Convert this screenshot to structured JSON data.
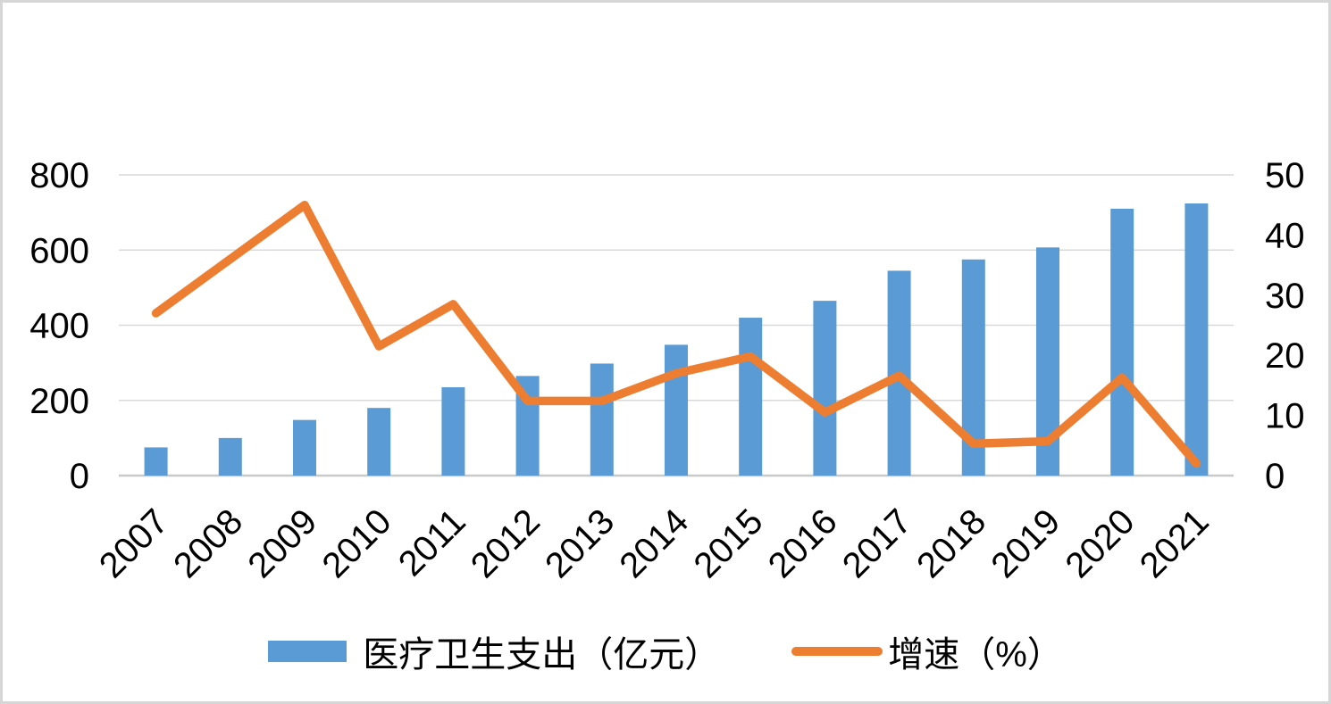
{
  "canvas": {
    "background": "#ffffff",
    "border_color": "#d6d6d6"
  },
  "chart_data": {
    "type": "combo-bar-line",
    "title": "",
    "categories": [
      "2007",
      "2008",
      "2009",
      "2010",
      "2011",
      "2012",
      "2013",
      "2014",
      "2015",
      "2016",
      "2017",
      "2018",
      "2019",
      "2020",
      "2021"
    ],
    "series": [
      {
        "name": "医疗卫生支出（亿元）",
        "type": "bar",
        "axis": "left",
        "color": "#5b9bd5",
        "values": [
          75,
          100,
          148,
          180,
          235,
          265,
          298,
          348,
          420,
          465,
          545,
          575,
          607,
          710,
          724
        ]
      },
      {
        "name": "增速（%）",
        "type": "line",
        "axis": "right",
        "color": "#ed7d31",
        "values": [
          27,
          36,
          45,
          21.5,
          28.5,
          12.4,
          12.4,
          17,
          19.8,
          10.5,
          16.6,
          5.3,
          5.7,
          16.3,
          2
        ]
      }
    ],
    "left_axis": {
      "min": 0,
      "max": 800,
      "ticks": [
        0,
        200,
        400,
        600,
        800
      ]
    },
    "right_axis": {
      "min": 0,
      "max": 50,
      "ticks": [
        0,
        10,
        20,
        30,
        40,
        50
      ]
    },
    "grid": "horizontal",
    "gridline_color": "#d9d9d9",
    "axis_line_color": "#c9c9c9",
    "text_color": "#000000",
    "legend_position": "bottom-center",
    "x_label_rotation_deg": -45
  },
  "legend": {
    "items": [
      {
        "label": "医疗卫生支出（亿元）",
        "swatch": "bar",
        "color": "#5b9bd5"
      },
      {
        "label": "增速（%）",
        "swatch": "line",
        "color": "#ed7d31"
      }
    ]
  }
}
